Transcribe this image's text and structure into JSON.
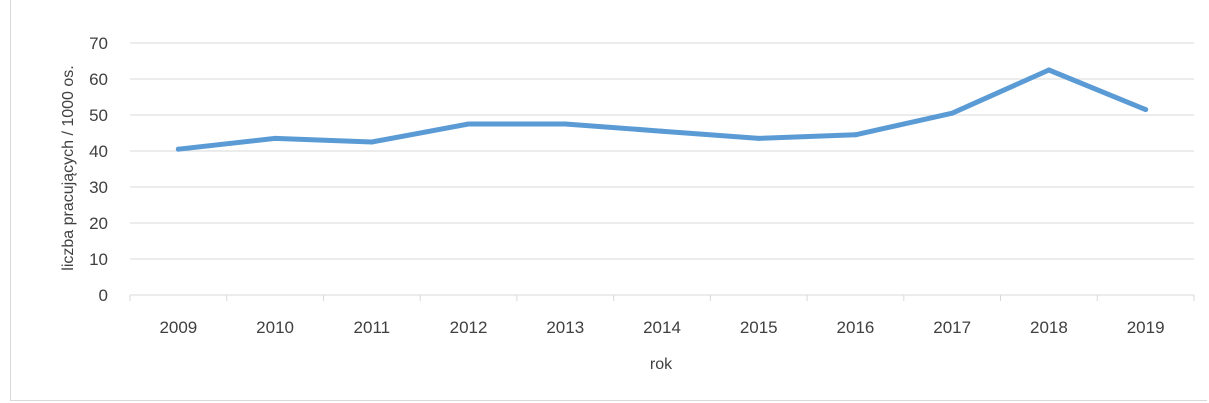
{
  "chart_data": {
    "type": "line",
    "title": "",
    "xlabel": "rok",
    "ylabel": "liczba pracujących / 1000 os.",
    "categories": [
      "2009",
      "2010",
      "2011",
      "2012",
      "2013",
      "2014",
      "2015",
      "2016",
      "2017",
      "2018",
      "2019"
    ],
    "series": [
      {
        "values": [
          40.5,
          43.5,
          42.5,
          47.5,
          47.5,
          45.5,
          43.5,
          44.5,
          50.5,
          62.5,
          51.5
        ],
        "color": "#5b9bd5"
      }
    ],
    "ylim": [
      0,
      70
    ],
    "yticks": [
      0,
      10,
      20,
      30,
      40,
      50,
      60,
      70
    ],
    "grid": true,
    "legend": "none",
    "gridline_color": "#d9d9d9"
  }
}
